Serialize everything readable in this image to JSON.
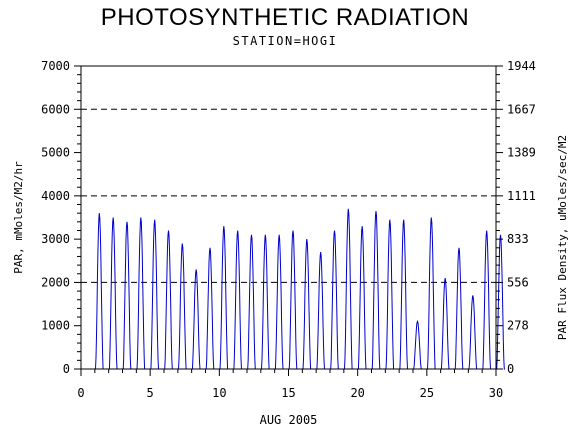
{
  "chart_data": {
    "type": "line",
    "title": "PHOTOSYNTHETIC RADIATION",
    "subtitle": "STATION=HOGI",
    "xlabel": "AUG 2005",
    "ylabel": "PAR, mMoles/M2/hr",
    "y2label": "PAR Flux Density, uMoles/sec/M2",
    "xlim": [
      0,
      30
    ],
    "ylim": [
      0,
      7000
    ],
    "x_ticks": [
      0,
      5,
      10,
      15,
      20,
      25,
      30
    ],
    "y_ticks": [
      0,
      1000,
      2000,
      3000,
      4000,
      5000,
      6000,
      7000
    ],
    "y2_ticks": [
      "0",
      "278",
      "556",
      "833",
      "1111",
      "1389",
      "1667",
      "1944"
    ],
    "gridlines_dashed": [
      2000,
      4000,
      6000
    ],
    "line_color": "#0000cc",
    "series": [
      {
        "daily_peaks": [
          {
            "day": 1,
            "value": 3600
          },
          {
            "day": 2,
            "value": 3500
          },
          {
            "day": 3,
            "value": 3400
          },
          {
            "day": 4,
            "value": 3500
          },
          {
            "day": 5,
            "value": 3450
          },
          {
            "day": 6,
            "value": 3200
          },
          {
            "day": 7,
            "value": 2900
          },
          {
            "day": 8,
            "value": 2300
          },
          {
            "day": 9,
            "value": 2800
          },
          {
            "day": 10,
            "value": 3300
          },
          {
            "day": 11,
            "value": 3200
          },
          {
            "day": 12,
            "value": 3100
          },
          {
            "day": 13,
            "value": 3100
          },
          {
            "day": 14,
            "value": 3100
          },
          {
            "day": 15,
            "value": 3200
          },
          {
            "day": 16,
            "value": 3000
          },
          {
            "day": 17,
            "value": 2700
          },
          {
            "day": 18,
            "value": 3200
          },
          {
            "day": 19,
            "value": 3700
          },
          {
            "day": 20,
            "value": 3300
          },
          {
            "day": 21,
            "value": 3650
          },
          {
            "day": 22,
            "value": 3450
          },
          {
            "day": 23,
            "value": 3450
          },
          {
            "day": 24,
            "value": 1100
          },
          {
            "day": 25,
            "value": 3500
          },
          {
            "day": 26,
            "value": 2100
          },
          {
            "day": 27,
            "value": 2800
          },
          {
            "day": 28,
            "value": 1700
          },
          {
            "day": 29,
            "value": 3200
          },
          {
            "day": 30,
            "value": 3100
          }
        ]
      }
    ]
  }
}
